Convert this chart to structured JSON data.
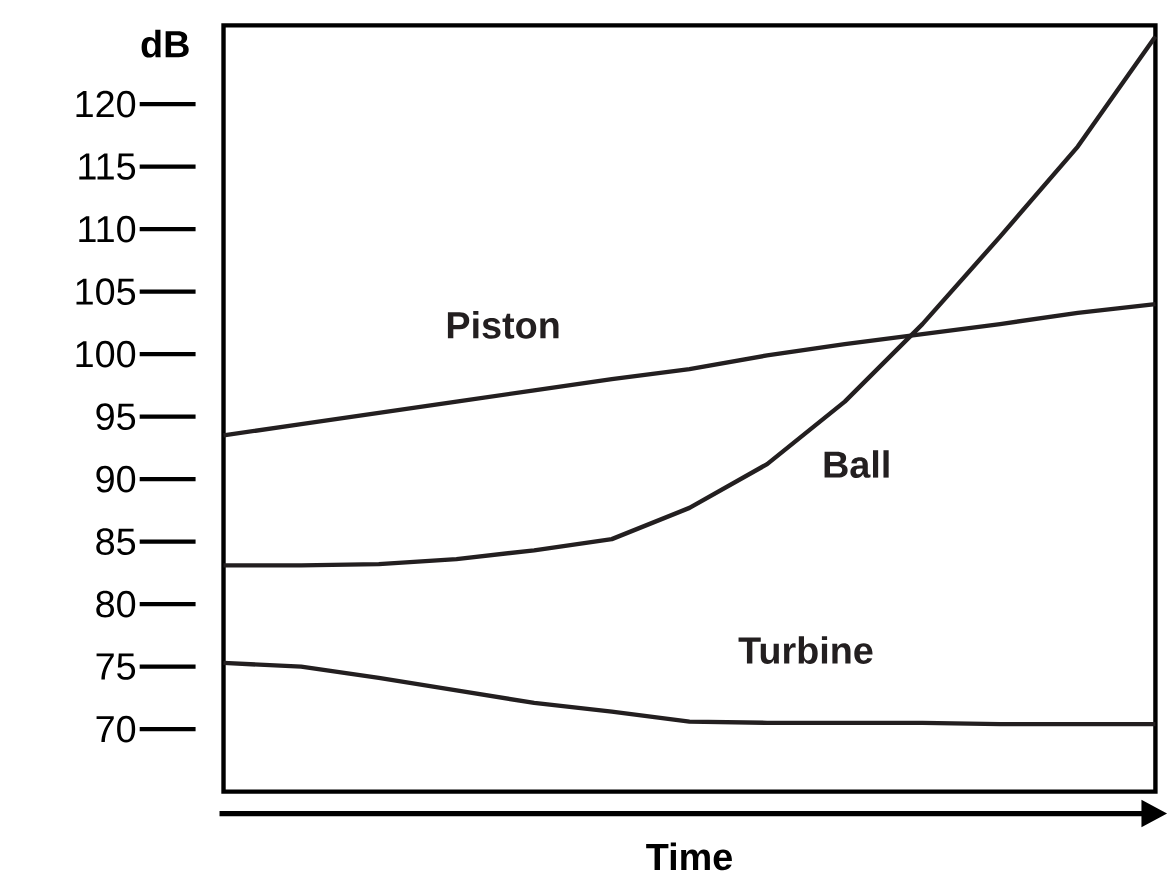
{
  "chart_data": {
    "type": "line",
    "xlabel": "Time",
    "ylabel": "dB",
    "categories": [
      null,
      null,
      null,
      null,
      null,
      null,
      null,
      null,
      null,
      null,
      null,
      null,
      null
    ],
    "series": [
      {
        "name": "Piston",
        "color": "#231f20",
        "values": [
          93.5,
          94.4,
          95.3,
          96.2,
          97.1,
          98.0,
          98.8,
          99.9,
          100.8,
          101.6,
          102.4,
          103.3,
          104.0
        ]
      },
      {
        "name": "Ball",
        "color": "#231f20",
        "values": [
          83.1,
          83.1,
          83.2,
          83.6,
          84.3,
          85.2,
          87.7,
          91.2,
          96.2,
          102.4,
          109.4,
          116.6,
          125.4
        ]
      },
      {
        "name": "Turbine",
        "color": "#231f20",
        "values": [
          75.3,
          75.0,
          74.1,
          73.1,
          72.1,
          71.4,
          70.6,
          70.5,
          70.5,
          70.5,
          70.4,
          70.4,
          70.4
        ]
      }
    ],
    "ylim": [
      65,
      126.3
    ],
    "yticks": [
      70,
      75,
      80,
      85,
      90,
      95,
      100,
      105,
      110,
      115,
      120
    ],
    "tick_labels": "y"
  }
}
